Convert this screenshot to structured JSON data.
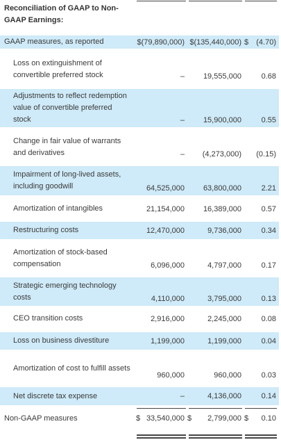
{
  "title": "Reconciliation of GAAP to Non-GAAP Earnings:",
  "rows": [
    {
      "label": "GAAP measures, as reported",
      "c1": "$(79,890,000)",
      "c2": "$(135,440,000)",
      "c3_sym": "$",
      "c3": "(4.70)"
    },
    {
      "label": "Loss on extinguishment of convertible preferred stock",
      "c1": "–",
      "c2": "19,555,000",
      "c3": "0.68"
    },
    {
      "label": "Adjustments to reflect redemption value of convertible preferred stock",
      "c1": "–",
      "c2": "15,900,000",
      "c3": "0.55"
    },
    {
      "label": "Change in fair value of warrants and derivatives",
      "c1": "–",
      "c2": "(4,273,000)",
      "c3": "(0.15)"
    },
    {
      "label": "Impairment of long-lived assets, including goodwill",
      "c1": "64,525,000",
      "c2": "63,800,000",
      "c3": "2.21"
    },
    {
      "label": "Amortization of intangibles",
      "c1": "21,154,000",
      "c2": "16,389,000",
      "c3": "0.57"
    },
    {
      "label": "Restructuring costs",
      "c1": "12,470,000",
      "c2": "9,736,000",
      "c3": "0.34"
    },
    {
      "label": "Amortization of stock-based compensation",
      "c1": "6,096,000",
      "c2": "4,797,000",
      "c3": "0.17"
    },
    {
      "label": "Strategic emerging technology costs",
      "c1": "4,110,000",
      "c2": "3,795,000",
      "c3": "0.13"
    },
    {
      "label": "CEO transition costs",
      "c1": "2,916,000",
      "c2": "2,245,000",
      "c3": "0.08"
    },
    {
      "label": "Loss on business divestiture",
      "c1": "1,199,000",
      "c2": "1,199,000",
      "c3": "0.04"
    },
    {
      "label": "Amortization of cost to fulfill assets",
      "c1": "960,000",
      "c2": "960,000",
      "c3": "0.03"
    },
    {
      "label": "Net discrete tax expense",
      "c1": "–",
      "c2": "4,136,000",
      "c3": "0.14"
    },
    {
      "label": "Non-GAAP measures",
      "c1_sym": "$",
      "c1": "33,540,000",
      "c2_sym": "$",
      "c2": "2,799,000",
      "c3_sym": "$",
      "c3": "0.10"
    }
  ],
  "colors": {
    "row_shade": "#cfeaf8",
    "text": "#3a3a3a",
    "rule": "#444444"
  }
}
